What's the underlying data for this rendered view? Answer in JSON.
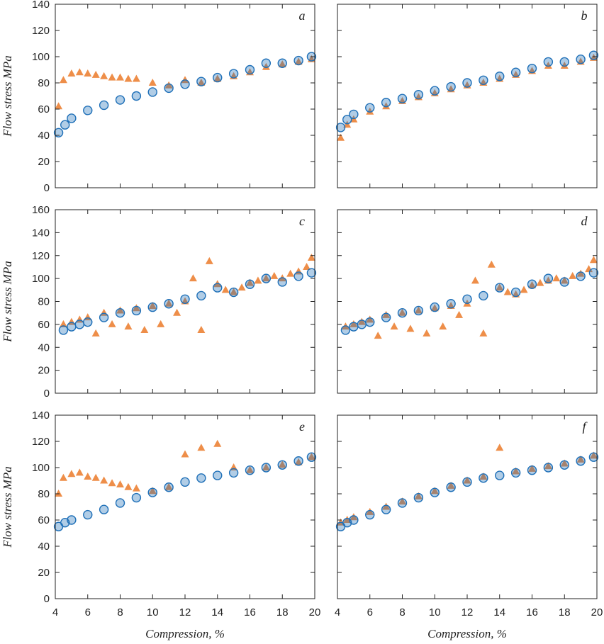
{
  "figure": {
    "ylabel": "Flow stress MPa",
    "xlabel": "Compression, %"
  },
  "colors": {
    "triangles": "#e8680c",
    "circles": "#1f70b8"
  },
  "chart_data": [
    {
      "type": "scatter",
      "panel": "a",
      "row": 0,
      "col": 0,
      "xlim": [
        4,
        20
      ],
      "ylim": [
        0,
        140
      ],
      "xticks": [
        "4",
        "6",
        "8",
        "10",
        "12",
        "14",
        "16",
        "18",
        "20"
      ],
      "yticks": [
        "0",
        "20",
        "40",
        "60",
        "80",
        "100",
        "120",
        "140"
      ],
      "series": [
        {
          "marker": "triangle",
          "color": "#e8680c",
          "x": [
            4.2,
            4.5,
            5,
            5.5,
            6,
            6.5,
            7,
            7.5,
            8,
            8.5,
            9,
            10,
            11,
            12,
            13,
            14,
            15,
            16,
            17,
            18,
            19,
            19.8
          ],
          "y": [
            62,
            82,
            87,
            88,
            87,
            86,
            85,
            84,
            84,
            83,
            83,
            80,
            78,
            82,
            80,
            83,
            85,
            88,
            92,
            94,
            96,
            98
          ]
        },
        {
          "marker": "circle",
          "color": "#1f70b8",
          "x": [
            4.2,
            4.6,
            5,
            6,
            7,
            8,
            9,
            10,
            11,
            12,
            13,
            14,
            15,
            16,
            17,
            18,
            19,
            19.8
          ],
          "y": [
            42,
            48,
            53,
            59,
            63,
            67,
            70,
            73,
            76,
            79,
            81,
            84,
            87,
            90,
            95,
            95,
            97,
            100
          ]
        }
      ]
    },
    {
      "type": "scatter",
      "panel": "b",
      "row": 0,
      "col": 1,
      "xlim": [
        4,
        20
      ],
      "ylim": [
        0,
        140
      ],
      "xticks": [
        "4",
        "6",
        "8",
        "10",
        "12",
        "14",
        "16",
        "18",
        "20"
      ],
      "yticks": [],
      "series": [
        {
          "marker": "triangle",
          "color": "#e8680c",
          "x": [
            4.2,
            4.6,
            5,
            6,
            7,
            8,
            9,
            10,
            11,
            12,
            13,
            14,
            15,
            16,
            17,
            18,
            19,
            19.8
          ],
          "y": [
            38,
            48,
            52,
            58,
            62,
            66,
            69,
            72,
            75,
            78,
            80,
            83,
            86,
            89,
            93,
            93,
            96,
            99
          ]
        },
        {
          "marker": "circle",
          "color": "#1f70b8",
          "x": [
            4.2,
            4.6,
            5,
            6,
            7,
            8,
            9,
            10,
            11,
            12,
            13,
            14,
            15,
            16,
            17,
            18,
            19,
            19.8
          ],
          "y": [
            46,
            52,
            56,
            61,
            65,
            68,
            71,
            74,
            77,
            80,
            82,
            85,
            88,
            91,
            96,
            96,
            98,
            101
          ]
        }
      ]
    },
    {
      "type": "scatter",
      "panel": "c",
      "row": 1,
      "col": 0,
      "xlim": [
        4,
        20
      ],
      "ylim": [
        0,
        160
      ],
      "xticks": [
        "4",
        "6",
        "8",
        "10",
        "12",
        "14",
        "16",
        "18",
        "20"
      ],
      "yticks": [
        "0",
        "20",
        "40",
        "60",
        "80",
        "100",
        "120",
        "140",
        "160"
      ],
      "series": [
        {
          "marker": "triangle",
          "color": "#e8680c",
          "x": [
            4.5,
            5,
            5.5,
            6,
            6.5,
            7,
            7.5,
            8,
            8.5,
            9,
            9.5,
            10,
            10.5,
            11,
            11.5,
            12,
            12.5,
            13,
            13.5,
            14,
            14.5,
            15,
            15.5,
            16,
            16.5,
            17,
            17.5,
            18,
            18.5,
            19,
            19.5,
            19.8
          ],
          "y": [
            60,
            62,
            64,
            66,
            52,
            70,
            60,
            72,
            58,
            74,
            55,
            76,
            60,
            78,
            70,
            80,
            100,
            55,
            115,
            95,
            90,
            88,
            92,
            96,
            98,
            100,
            102,
            100,
            104,
            106,
            110,
            118
          ]
        },
        {
          "marker": "circle",
          "color": "#1f70b8",
          "x": [
            4.5,
            5,
            5.5,
            6,
            7,
            8,
            9,
            10,
            11,
            12,
            13,
            14,
            15,
            16,
            17,
            18,
            19,
            19.8
          ],
          "y": [
            55,
            58,
            60,
            62,
            66,
            70,
            72,
            75,
            78,
            82,
            85,
            92,
            88,
            95,
            100,
            97,
            102,
            105
          ]
        }
      ]
    },
    {
      "type": "scatter",
      "panel": "d",
      "row": 1,
      "col": 1,
      "xlim": [
        4,
        20
      ],
      "ylim": [
        0,
        160
      ],
      "xticks": [
        "4",
        "6",
        "8",
        "10",
        "12",
        "14",
        "16",
        "18",
        "20"
      ],
      "yticks": [],
      "series": [
        {
          "marker": "triangle",
          "color": "#e8680c",
          "x": [
            4.5,
            5,
            5.5,
            6,
            6.5,
            7,
            7.5,
            8,
            8.5,
            9,
            9.5,
            10,
            10.5,
            11,
            11.5,
            12,
            12.5,
            13,
            13.5,
            14,
            14.5,
            15,
            15.5,
            16,
            16.5,
            17,
            17.5,
            18,
            18.5,
            19,
            19.5,
            19.8
          ],
          "y": [
            58,
            60,
            62,
            64,
            50,
            68,
            58,
            70,
            56,
            72,
            52,
            74,
            58,
            76,
            68,
            78,
            98,
            52,
            112,
            92,
            88,
            86,
            90,
            94,
            96,
            98,
            100,
            98,
            102,
            104,
            108,
            116
          ]
        },
        {
          "marker": "circle",
          "color": "#1f70b8",
          "x": [
            4.5,
            5,
            5.5,
            6,
            7,
            8,
            9,
            10,
            11,
            12,
            13,
            14,
            15,
            16,
            17,
            18,
            19,
            19.8
          ],
          "y": [
            55,
            58,
            60,
            62,
            66,
            70,
            72,
            75,
            78,
            82,
            85,
            92,
            88,
            95,
            100,
            97,
            102,
            105
          ]
        }
      ]
    },
    {
      "type": "scatter",
      "panel": "e",
      "row": 2,
      "col": 0,
      "xlim": [
        4,
        20
      ],
      "ylim": [
        0,
        140
      ],
      "xticks": [
        "4",
        "6",
        "8",
        "10",
        "12",
        "14",
        "16",
        "18",
        "20"
      ],
      "yticks": [
        "0",
        "20",
        "40",
        "60",
        "80",
        "100",
        "120",
        "140"
      ],
      "series": [
        {
          "marker": "triangle",
          "color": "#e8680c",
          "x": [
            4.2,
            4.5,
            5,
            5.5,
            6,
            6.5,
            7,
            7.5,
            8,
            8.5,
            9,
            10,
            11,
            12,
            13,
            14,
            15,
            16,
            17,
            18,
            19,
            19.8
          ],
          "y": [
            80,
            92,
            95,
            96,
            93,
            92,
            90,
            88,
            87,
            85,
            84,
            82,
            85,
            110,
            115,
            118,
            100,
            98,
            100,
            102,
            104,
            108
          ]
        },
        {
          "marker": "circle",
          "color": "#1f70b8",
          "x": [
            4.2,
            4.6,
            5,
            6,
            7,
            8,
            9,
            10,
            11,
            12,
            13,
            14,
            15,
            16,
            17,
            18,
            19,
            19.8
          ],
          "y": [
            55,
            58,
            60,
            64,
            68,
            73,
            77,
            81,
            85,
            89,
            92,
            94,
            96,
            98,
            100,
            102,
            105,
            108
          ]
        }
      ]
    },
    {
      "type": "scatter",
      "panel": "f",
      "row": 2,
      "col": 1,
      "xlim": [
        4,
        20
      ],
      "ylim": [
        0,
        140
      ],
      "xticks": [
        "4",
        "6",
        "8",
        "10",
        "12",
        "14",
        "16",
        "18",
        "20"
      ],
      "yticks": [],
      "series": [
        {
          "marker": "triangle",
          "color": "#e8680c",
          "x": [
            4.2,
            4.6,
            5,
            6,
            7,
            8,
            9,
            10,
            11,
            12,
            13,
            14,
            15,
            16,
            17,
            18,
            19,
            19.8
          ],
          "y": [
            58,
            60,
            62,
            66,
            70,
            74,
            78,
            82,
            86,
            90,
            93,
            115,
            97,
            99,
            101,
            103,
            106,
            109
          ]
        },
        {
          "marker": "circle",
          "color": "#1f70b8",
          "x": [
            4.2,
            4.6,
            5,
            6,
            7,
            8,
            9,
            10,
            11,
            12,
            13,
            14,
            15,
            16,
            17,
            18,
            19,
            19.8
          ],
          "y": [
            55,
            58,
            60,
            64,
            68,
            73,
            77,
            81,
            85,
            89,
            92,
            94,
            96,
            98,
            100,
            102,
            105,
            108
          ]
        }
      ]
    }
  ]
}
